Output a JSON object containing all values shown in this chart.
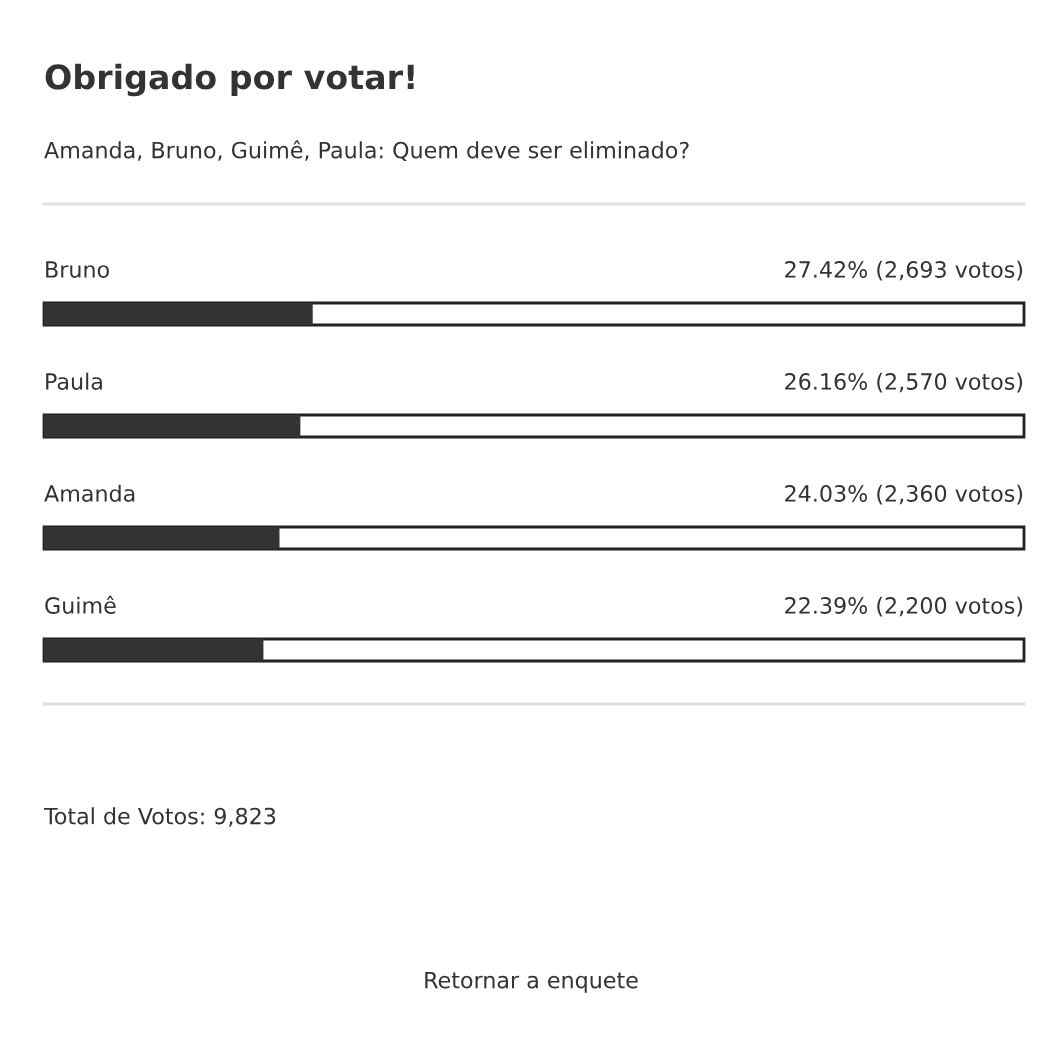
{
  "chart_data": {
    "type": "bar",
    "orientation": "horizontal",
    "title": "Obrigado por votar!",
    "subtitle": "Amanda, Bruno, Guimê, Paula: Quem deve ser eliminado?",
    "categories": [
      "Bruno",
      "Paula",
      "Amanda",
      "Guimê"
    ],
    "values": [
      27.42,
      26.16,
      24.03,
      22.39
    ],
    "value_labels": [
      "27.42% (2,693 votos)",
      "26.16% (2,570 votos)",
      "24.03% (2,360 votos)",
      "22.39% (2,200 votos)"
    ],
    "color": "#333333",
    "xlim": [
      0,
      100
    ],
    "annotations": [
      "Total de Votos: 9,823",
      "Retornar a enquete"
    ]
  }
}
